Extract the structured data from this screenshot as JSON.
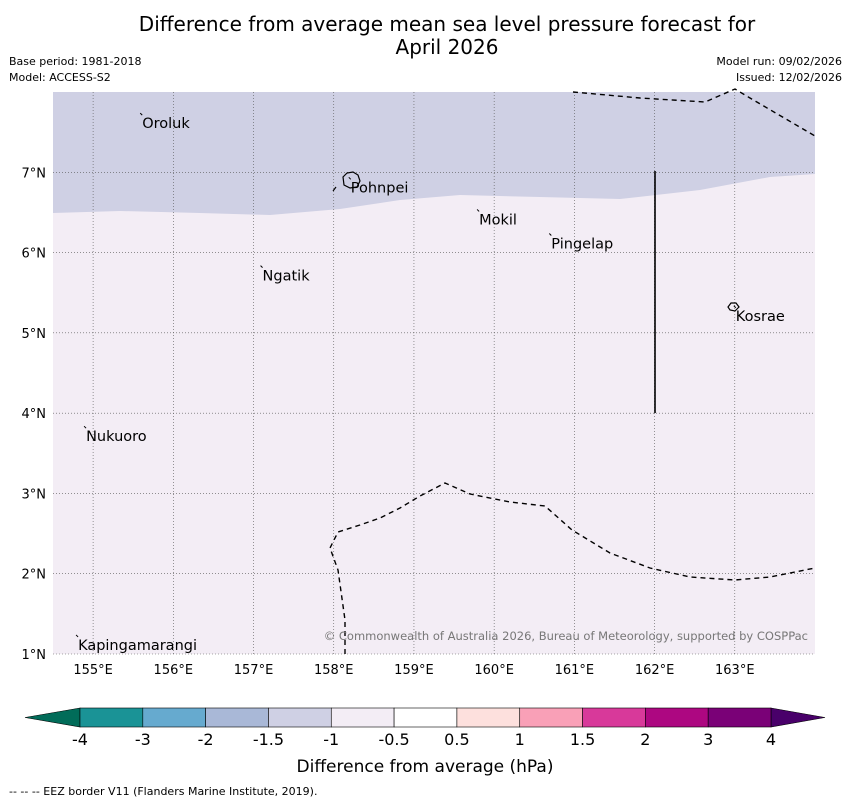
{
  "title_line1": "Difference from average mean sea level pressure forecast for",
  "title_line2": "April 2026",
  "base_period": "Base period: 1981-2018",
  "model": "Model: ACCESS-S2",
  "model_run": "Model run: 09/02/2026",
  "issued": "Issued: 12/02/2026",
  "map": {
    "lon_range": [
      154.5,
      164.0
    ],
    "lat_range": [
      1.0,
      8.0
    ],
    "lon_ticks": [
      155,
      156,
      157,
      158,
      159,
      160,
      161,
      162,
      163
    ],
    "lon_labels": [
      "155°E",
      "156°E",
      "157°E",
      "158°E",
      "159°E",
      "160°E",
      "161°E",
      "162°E",
      "163°E"
    ],
    "lat_ticks": [
      1,
      2,
      3,
      4,
      5,
      6,
      7
    ],
    "lat_labels": [
      "1°N",
      "2°N",
      "3°N",
      "4°N",
      "5°N",
      "6°N",
      "7°N"
    ],
    "places": [
      {
        "name": "Oroluk",
        "lon": 155.6,
        "lat": 7.7
      },
      {
        "name": "Pohnpei",
        "lon": 158.2,
        "lat": 6.9
      },
      {
        "name": "Mokil",
        "lon": 159.8,
        "lat": 6.5
      },
      {
        "name": "Pingelap",
        "lon": 160.7,
        "lat": 6.2
      },
      {
        "name": "Ngatik",
        "lon": 157.1,
        "lat": 5.8
      },
      {
        "name": "Kosrae",
        "lon": 163.0,
        "lat": 5.3
      },
      {
        "name": "Nukuoro",
        "lon": 154.9,
        "lat": 3.8
      },
      {
        "name": "Kapingamarangi",
        "lon": 154.8,
        "lat": 1.2
      }
    ],
    "copyright": "© Commonwealth of Australia 2026, Bureau of Meteorology, supported by COSPPac",
    "colors": {
      "upper_region": "#cfd0e4",
      "lower_region": "#f3edf5"
    }
  },
  "colorbar": {
    "labels": [
      "-4",
      "-3",
      "-2",
      "-1.5",
      "-1",
      "-0.5",
      "0.5",
      "1",
      "1.5",
      "2",
      "3",
      "4"
    ],
    "colors": [
      "#1a9396",
      "#66aacf",
      "#a9b8d7",
      "#cfd0e4",
      "#f3edf5",
      "#ffffff",
      "#fde0dd",
      "#f9a0b7",
      "#d8399a",
      "#ad0781",
      "#7a0177"
    ],
    "under_color": "#016c59",
    "over_color": "#49006a",
    "label": "Difference from average (hPa)"
  },
  "footer": "--  --  -- EEZ border V11 (Flanders Marine Institute, 2019)."
}
